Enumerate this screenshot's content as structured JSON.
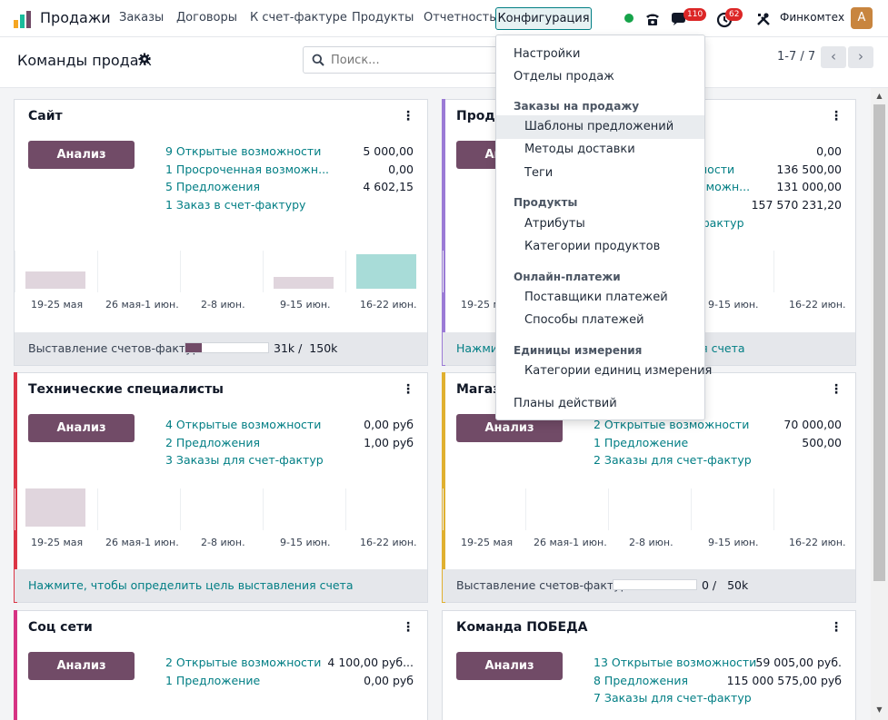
{
  "navbar": {
    "app_name": "Продажи",
    "menu": [
      "Заказы",
      "Договоры",
      "К счет-фактуре",
      "Продукты",
      "Отчетность"
    ],
    "active_menu": "Конфигурация",
    "messages_badge": "110",
    "activities_badge": "62",
    "company": "Финкомтех",
    "avatar_letter": "A"
  },
  "control": {
    "title": "Команды продаж",
    "search_placeholder": "Поиск...",
    "pager": "1-7 / 7"
  },
  "dropdown": {
    "items": [
      {
        "label": "Настройки"
      },
      {
        "label": "Отделы продаж"
      }
    ],
    "sections": [
      {
        "header": "Заказы на продажу",
        "items": [
          "Шаблоны предложений",
          "Методы доставки",
          "Теги"
        ]
      },
      {
        "header": "Продукты",
        "items": [
          "Атрибуты",
          "Категории продуктов"
        ]
      },
      {
        "header": "Онлайн-платежи",
        "items": [
          "Поставщики платежей",
          "Способы платежей"
        ]
      },
      {
        "header": "Единицы измерения",
        "items": [
          "Категории единиц измерения"
        ]
      }
    ],
    "footer_item": "Планы действий"
  },
  "common": {
    "analysis_button": "Анализ продаж",
    "graph_labels": [
      "19-25 мая",
      "26 мая-1 июн.",
      "2-8 июн.",
      "9-15 июн.",
      "16-22 июн."
    ],
    "invoicing_label": "Выставление счетов-фактур",
    "invoicing_target_link": "Нажмите, чтобы определить цель выставления счета"
  },
  "cards": [
    {
      "title": "Сайт",
      "stats": [
        {
          "label": "9 Открытые возможности",
          "value": "5 000,00"
        },
        {
          "label": "1 Просроченная возможн...",
          "value": "0,00"
        },
        {
          "label": "5 Предложения",
          "value": "4 602,15"
        },
        {
          "label": "1 Заказ в счет-фактуру",
          "value": ""
        }
      ],
      "invoiced": "31k",
      "target": "150k",
      "progress": 0.2
    },
    {
      "title": "Прода",
      "stats": [
        {
          "label": "",
          "value": "0,00"
        },
        {
          "label": "ности",
          "value": "136 500,00"
        },
        {
          "label": "зможн...",
          "value": "131 000,00"
        },
        {
          "label": "",
          "value": "157 570 231,20"
        },
        {
          "label": "фактур",
          "value": ""
        }
      ],
      "footer_link_partial_a": "Нажми",
      "footer_link_partial_b": "ия счета"
    },
    {
      "title": "Технические специалисты",
      "stats": [
        {
          "label": "4 Открытые возможности",
          "value": "0,00 руб"
        },
        {
          "label": "2 Предложения",
          "value": "1,00 руб"
        },
        {
          "label": "3 Заказы для счет-фактур",
          "value": ""
        }
      ]
    },
    {
      "title": "Магаз",
      "stats": [
        {
          "label": "2 Открытые возможности",
          "value": "70 000,00"
        },
        {
          "label": "1 Предложение",
          "value": "500,00"
        },
        {
          "label": "2 Заказы для счет-фактур",
          "value": ""
        }
      ],
      "invoiced": "0",
      "target": "50k",
      "progress": 0
    },
    {
      "title": "Соц сети",
      "stats": [
        {
          "label": "2 Открытые возможности",
          "value": "4 100,00 руб..."
        },
        {
          "label": "1 Предложение",
          "value": "0,00 руб"
        }
      ]
    },
    {
      "title": "Команда ПОБЕДА",
      "stats": [
        {
          "label": "13 Открытые возможности",
          "value": "59 005,00 руб."
        },
        {
          "label": "8 Предложения",
          "value": "115 000 575,00 руб"
        },
        {
          "label": "7 Заказы для счет-фактур",
          "value": ""
        }
      ]
    }
  ],
  "colors": {
    "brand": "#714b67",
    "link": "#017e84",
    "accent_purple": "#9b7bd6",
    "accent_red": "#dc3545",
    "accent_yellow": "#e0b030",
    "accent_pink": "#d63384",
    "bar_muted": "#e0d5dd",
    "bar_highlight": "#a8dcd8"
  },
  "icons": {
    "app": "sales-chart-icon",
    "settings": "gear-icon",
    "search": "search-icon",
    "phone": "phone-icon",
    "chat": "chat-icon",
    "activity": "clock-icon",
    "tools": "tools-icon"
  }
}
